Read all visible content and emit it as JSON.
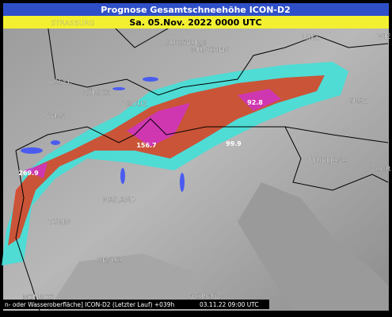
{
  "header": {
    "title": "Prognose Gesamtschneehöhe ICON-D2",
    "subtitle": "Sa. 05.Nov. 2022 0000 UTC"
  },
  "cities": [
    "STRASBURG",
    "AUGSBURG",
    "MÜNCHEN",
    "LINZ",
    "WIE",
    "BASEL",
    "ZÜRICH",
    "VADUZ",
    "BERN",
    "GRAZ",
    "LJUBLJANA",
    "ZAGR",
    "MAILAND",
    "TURIN",
    "GENUA",
    "MONACO",
    "FLORENZ"
  ],
  "snow_labels": [
    "92.8",
    "156.7",
    "99.9",
    "269.9"
  ],
  "footer": {
    "left": "n- oder Wasseroberfläche] ICON-D2 (Letzter Lauf) +039h",
    "right": "03.11.22 09:00 UTC"
  }
}
